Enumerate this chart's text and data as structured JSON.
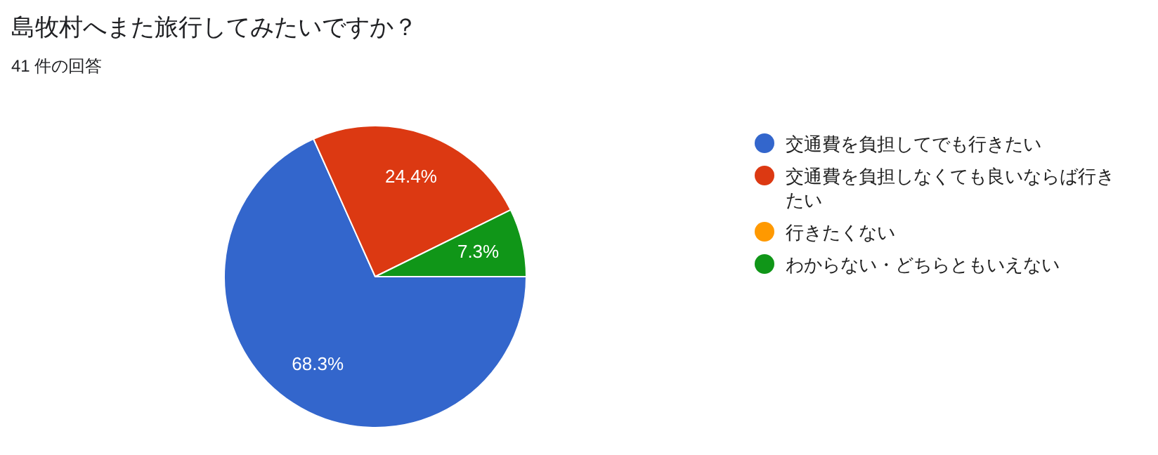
{
  "chart_data": {
    "type": "pie",
    "title": "島牧村へまた旅行してみたいですか？",
    "subtitle": "41 件の回答",
    "categories": [
      "交通費を負担してでも行きたい",
      "交通費を負担しなくても良いならば行きたい",
      "行きたくない",
      "わからない・どちらともいえない"
    ],
    "values": [
      68.3,
      24.4,
      0,
      7.3
    ],
    "value_labels": [
      "68.3%",
      "24.4%",
      null,
      "7.3%"
    ],
    "colors": [
      "#3366cc",
      "#dc3912",
      "#ff9900",
      "#109618"
    ],
    "legend": "right"
  }
}
